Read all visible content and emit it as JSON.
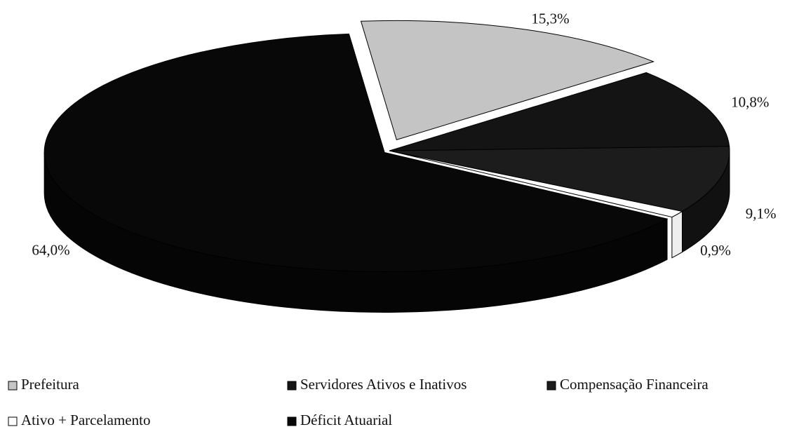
{
  "chart_data": {
    "type": "pie",
    "three_d": true,
    "categories": [
      "Prefeitura",
      "Servidores Ativos e Inativos",
      "Compensação Financeira",
      "Ativo + Parcelamento",
      "Déficit Atuarial"
    ],
    "values": [
      15.3,
      10.8,
      9.1,
      0.9,
      64.0
    ],
    "value_labels": [
      "15,3%",
      "10,8%",
      "9,1%",
      "0,9%",
      "64,0%"
    ],
    "colors": [
      "#c4c4c4",
      "#141414",
      "#1c1c1c",
      "#ffffff",
      "#080808"
    ],
    "legend": "bottom"
  }
}
